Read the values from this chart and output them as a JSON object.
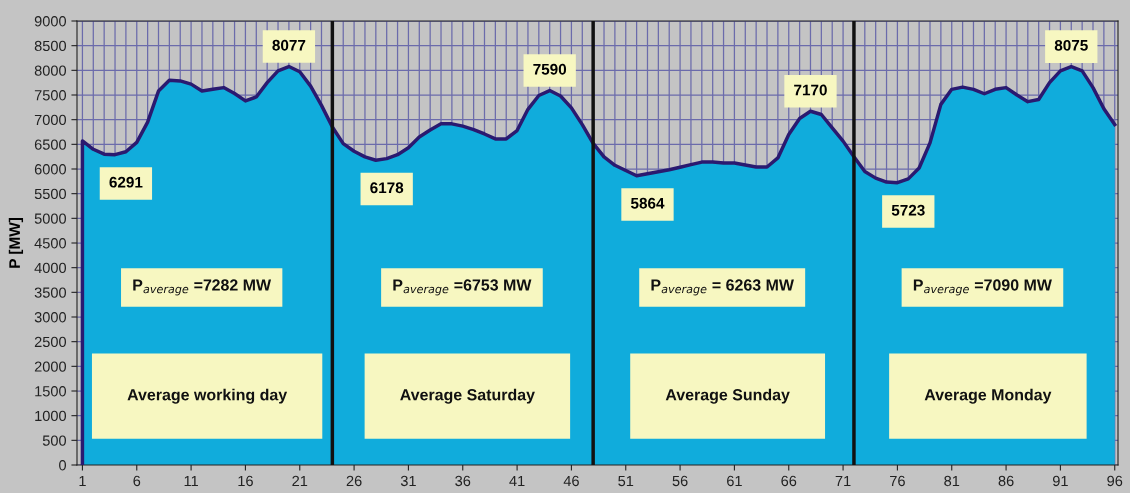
{
  "chart_data": {
    "type": "area",
    "ylabel": "P [MW]",
    "x": [
      1,
      2,
      3,
      4,
      5,
      6,
      7,
      8,
      9,
      10,
      11,
      12,
      13,
      14,
      15,
      16,
      17,
      18,
      19,
      20,
      21,
      22,
      23,
      24,
      25,
      26,
      27,
      28,
      29,
      30,
      31,
      32,
      33,
      34,
      35,
      36,
      37,
      38,
      39,
      40,
      41,
      42,
      43,
      44,
      45,
      46,
      47,
      48,
      49,
      50,
      51,
      52,
      53,
      54,
      55,
      56,
      57,
      58,
      59,
      60,
      61,
      62,
      63,
      64,
      65,
      66,
      67,
      68,
      69,
      70,
      71,
      72,
      73,
      74,
      75,
      76,
      77,
      78,
      79,
      80,
      81,
      82,
      83,
      84,
      85,
      86,
      87,
      88,
      89,
      90,
      91,
      92,
      93,
      94,
      95,
      96
    ],
    "series": [
      {
        "color": "#10acdc",
        "values": [
          6570,
          6400,
          6300,
          6291,
          6350,
          6540,
          6950,
          7580,
          7800,
          7785,
          7720,
          7580,
          7615,
          7650,
          7530,
          7380,
          7460,
          7750,
          7990,
          8077,
          7970,
          7680,
          7290,
          6850,
          6515,
          6360,
          6245,
          6178,
          6210,
          6290,
          6430,
          6650,
          6790,
          6915,
          6915,
          6870,
          6800,
          6710,
          6610,
          6610,
          6780,
          7210,
          7490,
          7590,
          7480,
          7240,
          6900,
          6520,
          6245,
          6075,
          5970,
          5864,
          5905,
          5945,
          5985,
          6035,
          6090,
          6140,
          6140,
          6120,
          6120,
          6080,
          6040,
          6040,
          6225,
          6700,
          7025,
          7170,
          7105,
          6835,
          6565,
          6250,
          5950,
          5815,
          5735,
          5723,
          5800,
          6020,
          6530,
          7310,
          7615,
          7660,
          7615,
          7525,
          7615,
          7650,
          7500,
          7365,
          7410,
          7750,
          7990,
          8075,
          7990,
          7650,
          7220,
          6900
        ]
      }
    ],
    "xlim": [
      0.5,
      96.3
    ],
    "xticks": [
      1,
      6,
      11,
      16,
      21,
      26,
      31,
      36,
      41,
      46,
      51,
      56,
      61,
      66,
      71,
      76,
      81,
      86,
      91,
      96
    ],
    "ylim": [
      0,
      9000
    ],
    "yticks": [
      0,
      500,
      1000,
      1500,
      2000,
      2500,
      3000,
      3500,
      4000,
      4500,
      5000,
      5500,
      6000,
      6500,
      7000,
      7500,
      8000,
      8500,
      9000
    ],
    "grid": true,
    "ref_lines": [
      {
        "axis": "x",
        "value": 24,
        "color": "#111111"
      },
      {
        "axis": "x",
        "value": 48,
        "color": "#111111"
      },
      {
        "axis": "x",
        "value": 72,
        "color": "#111111"
      }
    ],
    "annotations": [
      {
        "text": "6291",
        "x": 4,
        "y": 6291
      },
      {
        "text": "8077",
        "x": 20,
        "y": 8077
      },
      {
        "text": "6178",
        "x": 28,
        "y": 6178
      },
      {
        "text": "7590",
        "x": 44,
        "y": 7590
      },
      {
        "text": "5864",
        "x": 52,
        "y": 5864
      },
      {
        "text": "7170",
        "x": 68,
        "y": 7170
      },
      {
        "text": "5723",
        "x": 76,
        "y": 5723
      },
      {
        "text": "8075",
        "x": 92,
        "y": 8075
      },
      "P$_{average}$ =7282 MW",
      "Average working day",
      "P$_{average}$ =6753 MW",
      "Average Saturday",
      "P$_{average}$ = 6263 MW",
      "Average Sunday",
      "P$_{average}$ =7090 MW",
      "Average Monday"
    ]
  }
}
